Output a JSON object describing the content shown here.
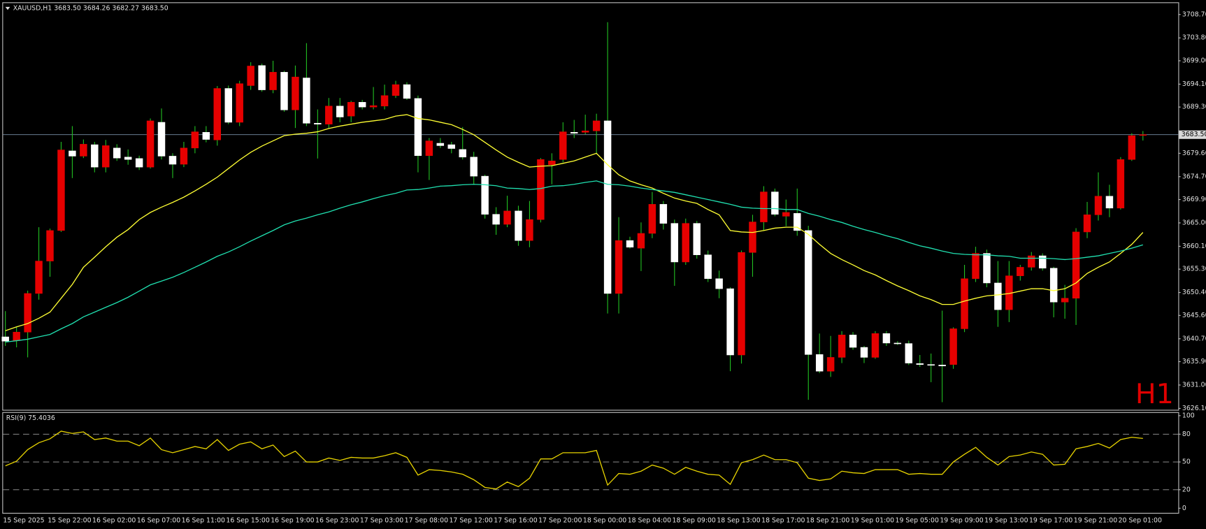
{
  "chart_data": [
    {
      "type": "candlestick",
      "title": "XAUUSD,H1  3683.50 3684.26 3682.27 3683.50",
      "categories": [
        "15 Sep 2025",
        null,
        null,
        null,
        "15 Sep 22:00",
        null,
        null,
        null,
        "16 Sep 02:00",
        null,
        null,
        null,
        "16 Sep 07:00",
        null,
        null,
        null,
        "16 Sep 11:00",
        null,
        null,
        null,
        "16 Sep 15:00",
        null,
        null,
        null,
        "16 Sep 19:00",
        null,
        null,
        null,
        "16 Sep 23:00",
        null,
        null,
        null,
        "17 Sep 03:00",
        null,
        null,
        null,
        "17 Sep 08:00",
        null,
        null,
        null,
        "17 Sep 12:00",
        null,
        null,
        null,
        "17 Sep 16:00",
        null,
        null,
        null,
        "17 Sep 20:00",
        null,
        null,
        null,
        "18 Sep 00:00",
        null,
        null,
        null,
        "18 Sep 04:00",
        null,
        null,
        null,
        "18 Sep 09:00",
        null,
        null,
        null,
        "18 Sep 13:00",
        null,
        null,
        null,
        "18 Sep 17:00",
        null,
        null,
        null,
        "18 Sep 21:00",
        null,
        null,
        null,
        "19 Sep 01:00",
        null,
        null,
        null,
        "19 Sep 05:00",
        null,
        null,
        null,
        "19 Sep 09:00",
        null,
        null,
        null,
        "19 Sep 13:00",
        null,
        null,
        null,
        "19 Sep 17:00",
        null,
        null,
        null,
        "19 Sep 21:00",
        null,
        null,
        null,
        "20 Sep 01:00",
        null,
        null
      ],
      "open": [
        3641.1,
        3640.3,
        3642.1,
        3650.2,
        3657.0,
        3663.4,
        3680.1,
        3679.0,
        3681.4,
        3676.7,
        3680.7,
        3678.8,
        3678.5,
        3676.7,
        3686.1,
        3679.0,
        3677.3,
        3680.7,
        3684.0,
        3682.4,
        3693.2,
        3686.1,
        3693.8,
        3698.0,
        3692.9,
        3696.6,
        3688.7,
        3695.4,
        3685.9,
        3685.7,
        3689.5,
        3687.4,
        3690.3,
        3689.3,
        3689.5,
        3691.7,
        3694.0,
        3691.1,
        3679.1,
        3681.7,
        3681.4,
        3680.4,
        3678.8,
        3674.8,
        3666.8,
        3664.7,
        3667.5,
        3661.3,
        3665.7,
        3677.2,
        3678.3,
        3684.0,
        3684.0,
        3684.3,
        3686.4,
        3650.2,
        3661.3,
        3659.7,
        3662.8,
        3668.9,
        3664.9,
        3656.8,
        3664.9,
        3658.3,
        3653.3,
        3651.2,
        3637.3,
        3658.8,
        3665.2,
        3671.5,
        3666.4,
        3667.0,
        3663.4,
        3637.4,
        3633.9,
        3636.8,
        3641.5,
        3638.9,
        3636.8,
        3641.8,
        3639.8,
        3639.7,
        3635.5,
        3635.3,
        3635.2,
        3635.3,
        3642.8,
        3653.3,
        3658.6,
        3652.4,
        3646.8,
        3653.9,
        3655.7,
        3658.1,
        3655.5,
        3648.4,
        3649.2,
        3663.1,
        3666.7,
        3670.6,
        3668.1,
        3678.3,
        3683.5
      ],
      "high": [
        3646.5,
        3643.2,
        3650.8,
        3664.1,
        3663.8,
        3682.0,
        3685.3,
        3682.5,
        3682.0,
        3682.4,
        3681.5,
        3680.4,
        3679.1,
        3686.9,
        3689.0,
        3679.6,
        3682.0,
        3685.3,
        3685.3,
        3693.7,
        3693.8,
        3694.8,
        3698.7,
        3698.4,
        3699.0,
        3696.9,
        3698.0,
        3702.7,
        3688.8,
        3691.2,
        3691.2,
        3690.6,
        3690.8,
        3693.5,
        3694.0,
        3694.8,
        3694.5,
        3691.7,
        3682.8,
        3682.8,
        3682.0,
        3685.1,
        3679.9,
        3675.1,
        3668.3,
        3670.7,
        3668.6,
        3669.6,
        3678.6,
        3679.6,
        3686.1,
        3686.6,
        3687.7,
        3687.9,
        3707.1,
        3666.2,
        3662.1,
        3665.1,
        3671.5,
        3669.6,
        3665.7,
        3665.9,
        3665.4,
        3659.2,
        3655.0,
        3651.5,
        3659.2,
        3666.7,
        3672.7,
        3672.2,
        3669.9,
        3672.2,
        3664.4,
        3641.8,
        3641.3,
        3642.3,
        3642.1,
        3639.2,
        3642.3,
        3642.3,
        3640.2,
        3640.3,
        3637.3,
        3637.6,
        3646.6,
        3643.1,
        3656.2,
        3660.0,
        3659.4,
        3657.0,
        3657.0,
        3656.2,
        3658.9,
        3658.6,
        3655.8,
        3652.0,
        3663.9,
        3669.4,
        3675.6,
        3673.0,
        3678.8,
        3683.8,
        3684.26
      ],
      "low": [
        3639.2,
        3638.9,
        3636.8,
        3648.9,
        3653.7,
        3663.1,
        3674.4,
        3678.6,
        3675.6,
        3675.6,
        3678.0,
        3677.2,
        3676.1,
        3676.4,
        3678.3,
        3674.4,
        3676.7,
        3679.6,
        3681.9,
        3681.2,
        3685.7,
        3685.3,
        3692.9,
        3692.5,
        3692.2,
        3688.3,
        3684.9,
        3685.3,
        3678.5,
        3684.8,
        3686.1,
        3686.1,
        3688.8,
        3688.8,
        3688.8,
        3691.2,
        3690.8,
        3675.6,
        3674.0,
        3680.7,
        3679.6,
        3678.3,
        3673.1,
        3665.9,
        3662.5,
        3664.1,
        3660.2,
        3659.9,
        3665.1,
        3673.1,
        3677.7,
        3682.8,
        3683.6,
        3679.6,
        3646.0,
        3646.0,
        3659.6,
        3654.9,
        3661.8,
        3663.6,
        3651.8,
        3656.2,
        3657.5,
        3652.6,
        3649.2,
        3633.9,
        3635.5,
        3653.7,
        3663.4,
        3666.4,
        3664.3,
        3662.3,
        3627.9,
        3633.5,
        3632.7,
        3635.6,
        3638.4,
        3635.6,
        3636.5,
        3639.2,
        3639.4,
        3635.2,
        3634.8,
        3631.6,
        3627.4,
        3634.4,
        3642.1,
        3652.6,
        3651.5,
        3643.2,
        3644.2,
        3652.9,
        3655.0,
        3655.0,
        3645.2,
        3644.9,
        3643.6,
        3661.8,
        3665.5,
        3666.2,
        3667.8,
        3678.0,
        3682.27
      ],
      "close": [
        3640.2,
        3642.1,
        3650.2,
        3657.0,
        3663.4,
        3680.3,
        3679.0,
        3681.5,
        3676.7,
        3681.2,
        3678.6,
        3678.3,
        3676.7,
        3686.4,
        3679.0,
        3677.3,
        3680.7,
        3684.1,
        3682.5,
        3693.2,
        3686.1,
        3694.2,
        3697.9,
        3692.9,
        3696.6,
        3688.7,
        3695.6,
        3685.9,
        3685.7,
        3689.5,
        3687.2,
        3690.3,
        3689.3,
        3689.6,
        3691.7,
        3694.0,
        3691.1,
        3679.1,
        3682.2,
        3681.2,
        3680.6,
        3678.8,
        3674.8,
        3666.8,
        3664.7,
        3667.5,
        3661.3,
        3665.7,
        3678.3,
        3678.0,
        3684.1,
        3683.8,
        3684.3,
        3686.4,
        3650.2,
        3661.3,
        3659.9,
        3662.8,
        3668.9,
        3664.9,
        3656.8,
        3664.9,
        3658.3,
        3653.3,
        3651.2,
        3637.3,
        3658.8,
        3665.2,
        3671.5,
        3666.8,
        3667.2,
        3663.4,
        3637.4,
        3633.9,
        3636.8,
        3641.5,
        3638.9,
        3636.8,
        3641.8,
        3639.8,
        3639.7,
        3635.6,
        3635.3,
        3635.2,
        3635.0,
        3642.8,
        3653.3,
        3658.6,
        3652.4,
        3646.8,
        3653.9,
        3655.7,
        3658.1,
        3655.5,
        3648.4,
        3649.2,
        3663.1,
        3666.7,
        3670.6,
        3668.1,
        3678.3,
        3683.3,
        3683.5
      ],
      "bull_color": "#e60000",
      "bear_color": "#ffffff",
      "wick_color": "#22c022",
      "overlays": [
        {
          "color": "#ffff33",
          "values": [
            3642.4,
            3643.2,
            3643.9,
            3645.0,
            3646.3,
            3649.2,
            3652.1,
            3655.7,
            3657.8,
            3660.0,
            3662.0,
            3663.6,
            3665.7,
            3667.2,
            3668.3,
            3669.3,
            3670.4,
            3671.7,
            3673.1,
            3674.6,
            3676.4,
            3678.2,
            3679.8,
            3681.1,
            3682.2,
            3683.3,
            3683.6,
            3683.8,
            3684.1,
            3684.8,
            3685.3,
            3685.7,
            3686.1,
            3686.4,
            3686.7,
            3687.4,
            3687.7,
            3686.9,
            3686.6,
            3686.1,
            3685.6,
            3684.6,
            3683.5,
            3681.9,
            3680.3,
            3678.8,
            3677.7,
            3676.7,
            3676.9,
            3677.0,
            3677.5,
            3678.0,
            3678.8,
            3679.6,
            3677.2,
            3675.1,
            3673.8,
            3673.0,
            3672.3,
            3671.2,
            3670.2,
            3669.6,
            3669.1,
            3667.8,
            3666.7,
            3663.4,
            3663.1,
            3663.0,
            3663.4,
            3663.9,
            3664.1,
            3664.1,
            3662.6,
            3660.5,
            3658.6,
            3657.3,
            3656.2,
            3655.0,
            3654.1,
            3652.9,
            3651.8,
            3650.8,
            3649.7,
            3648.9,
            3647.9,
            3647.9,
            3648.6,
            3649.2,
            3649.7,
            3649.9,
            3650.2,
            3650.7,
            3651.2,
            3651.2,
            3650.8,
            3651.2,
            3652.4,
            3654.4,
            3655.7,
            3656.8,
            3658.6,
            3660.5,
            3663.0
          ]
        },
        {
          "color": "#20e0b0",
          "values": [
            3640.0,
            3640.3,
            3640.6,
            3641.1,
            3641.6,
            3642.8,
            3643.9,
            3645.3,
            3646.3,
            3647.3,
            3648.3,
            3649.4,
            3650.7,
            3652.0,
            3652.8,
            3653.6,
            3654.6,
            3655.7,
            3656.8,
            3658.0,
            3658.9,
            3660.0,
            3661.2,
            3662.3,
            3663.4,
            3664.6,
            3665.4,
            3666.0,
            3666.7,
            3667.3,
            3668.1,
            3668.8,
            3669.4,
            3670.1,
            3670.7,
            3671.2,
            3671.9,
            3672.0,
            3672.3,
            3672.7,
            3672.8,
            3673.0,
            3673.1,
            3673.0,
            3672.8,
            3672.3,
            3672.2,
            3672.0,
            3672.2,
            3672.7,
            3672.8,
            3673.1,
            3673.5,
            3673.8,
            3673.1,
            3673.0,
            3672.7,
            3672.3,
            3672.0,
            3671.7,
            3671.4,
            3670.9,
            3670.4,
            3669.9,
            3669.4,
            3668.9,
            3668.3,
            3668.1,
            3668.0,
            3668.0,
            3667.8,
            3667.8,
            3667.0,
            3666.4,
            3665.7,
            3665.1,
            3664.3,
            3663.6,
            3663.0,
            3662.3,
            3661.7,
            3660.9,
            3660.2,
            3659.7,
            3659.1,
            3658.6,
            3658.4,
            3658.3,
            3658.3,
            3658.1,
            3658.0,
            3657.6,
            3657.6,
            3657.6,
            3657.5,
            3657.3,
            3657.5,
            3657.8,
            3658.1,
            3658.6,
            3659.1,
            3659.7,
            3660.4
          ]
        }
      ],
      "ylim": [
        3625.8,
        3711.1
      ],
      "yticks": [
        {
          "value": 3708.7,
          "label": "3708.70"
        },
        {
          "value": 3703.8,
          "label": "3703.80"
        },
        {
          "value": 3699.0,
          "label": "3699.00"
        },
        {
          "value": 3694.1,
          "label": "3694.10"
        },
        {
          "value": 3689.3,
          "label": "3689.30"
        },
        {
          "value": 3679.6,
          "label": "3679.60"
        },
        {
          "value": 3674.7,
          "label": "3674.70"
        },
        {
          "value": 3669.9,
          "label": "3669.90"
        },
        {
          "value": 3665.0,
          "label": "3665.00"
        },
        {
          "value": 3660.1,
          "label": "3660.10"
        },
        {
          "value": 3655.3,
          "label": "3655.30"
        },
        {
          "value": 3650.4,
          "label": "3650.40"
        },
        {
          "value": 3645.6,
          "label": "3645.60"
        },
        {
          "value": 3640.7,
          "label": "3640.70"
        },
        {
          "value": 3635.9,
          "label": "3635.90"
        },
        {
          "value": 3631.0,
          "label": "3631.00"
        },
        {
          "value": 3626.1,
          "label": "3626.10"
        }
      ],
      "current_price": {
        "value": 3683.5,
        "label": "3683.50"
      },
      "timeframe_label": "H1",
      "timeframe_color": "#e00000"
    },
    {
      "type": "line",
      "title": "RSI(9) 75.4036",
      "color": "#e6d200",
      "values": [
        45.8,
        50.8,
        63.3,
        70.8,
        75.0,
        83.3,
        80.8,
        82.5,
        74.2,
        75.8,
        72.5,
        72.5,
        67.5,
        75.8,
        63.3,
        60.0,
        63.3,
        66.7,
        64.2,
        74.2,
        62.5,
        69.2,
        71.7,
        64.2,
        68.3,
        55.8,
        61.7,
        50.0,
        50.0,
        54.2,
        51.7,
        55.0,
        54.2,
        54.2,
        56.7,
        60.0,
        55.0,
        35.8,
        41.7,
        40.8,
        39.2,
        36.7,
        30.8,
        22.5,
        20.8,
        28.3,
        23.3,
        32.5,
        53.3,
        53.3,
        60.0,
        60.0,
        60.0,
        62.5,
        25.0,
        37.5,
        36.7,
        40.0,
        46.7,
        43.3,
        36.7,
        44.2,
        40.0,
        36.7,
        35.8,
        25.8,
        49.2,
        52.5,
        57.5,
        52.5,
        52.5,
        49.2,
        32.5,
        30.0,
        31.7,
        40.0,
        38.3,
        37.5,
        41.7,
        41.7,
        41.7,
        36.7,
        37.5,
        36.7,
        36.7,
        50.0,
        58.3,
        65.8,
        55.0,
        46.7,
        55.8,
        57.5,
        60.8,
        58.3,
        46.7,
        47.5,
        64.2,
        66.7,
        70.0,
        65.0,
        74.2,
        76.7,
        75.4036
      ],
      "ylim": [
        -5,
        103
      ],
      "yticks": [
        100,
        80,
        50,
        20,
        0
      ],
      "levels": [
        80,
        50,
        20
      ]
    }
  ]
}
